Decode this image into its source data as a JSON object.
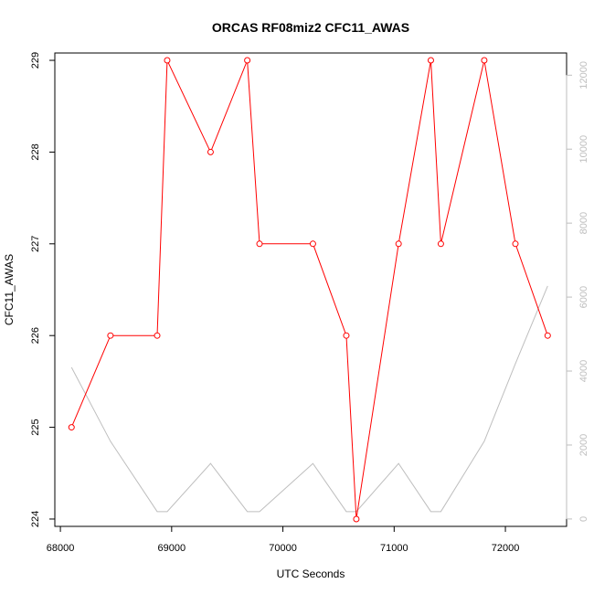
{
  "chart_data": {
    "type": "line",
    "title": "ORCAS RF08miz2 CFC11_AWAS",
    "xlabel": "UTC Seconds",
    "ylabel": "CFC11_AWAS",
    "xlim": [
      67950,
      72550
    ],
    "ylim": [
      223.92,
      229.08
    ],
    "y2lim": [
      -200,
      12600
    ],
    "x_ticks": [
      "68000",
      "69000",
      "70000",
      "71000",
      "72000"
    ],
    "y_ticks": [
      "224",
      "225",
      "226",
      "227",
      "228",
      "229"
    ],
    "y2_ticks": [
      "0",
      "2000",
      "4000",
      "6000",
      "8000",
      "10000",
      "12000"
    ],
    "series": [
      {
        "axis": "left",
        "color": "#ff0000",
        "x": [
          68100,
          68450,
          68870,
          68960,
          69350,
          69680,
          69790,
          70270,
          70570,
          70660,
          71040,
          71330,
          71420,
          71810,
          72090,
          72380
        ],
        "values": [
          225,
          226,
          226,
          229,
          228,
          229,
          227,
          227,
          226,
          224,
          227,
          229,
          227,
          229,
          227,
          226
        ]
      },
      {
        "axis": "right",
        "color": "#bebebe",
        "x": [
          68100,
          68450,
          68870,
          68960,
          69350,
          69680,
          69790,
          70270,
          70570,
          70660,
          71040,
          71330,
          71420,
          71810,
          72090,
          72380
        ],
        "values": [
          4100,
          2100,
          200,
          200,
          1500,
          200,
          200,
          1500,
          200,
          200,
          1500,
          200,
          200,
          2100,
          4200,
          6300
        ]
      }
    ]
  }
}
